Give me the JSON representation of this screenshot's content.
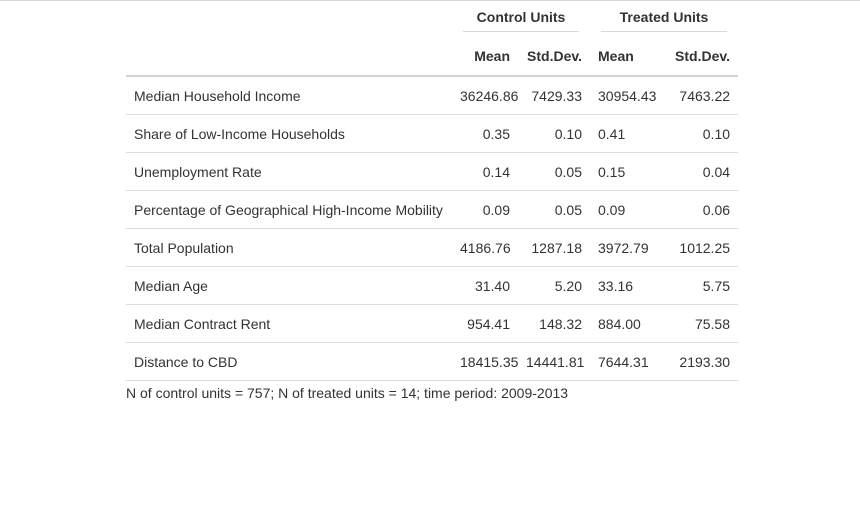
{
  "table": {
    "group_headers": [
      "Control Units",
      "Treated Units"
    ],
    "sub_headers": [
      "Mean",
      "Std.Dev.",
      "Mean",
      "Std.Dev."
    ],
    "rows": [
      {
        "label": "Median Household Income",
        "values": [
          "36246.86",
          "7429.33",
          "30954.43",
          "7463.22"
        ]
      },
      {
        "label": "Share of Low-Income Households",
        "values": [
          "0.35",
          "0.10",
          "0.41",
          "0.10"
        ]
      },
      {
        "label": "Unemployment Rate",
        "values": [
          "0.14",
          "0.05",
          "0.15",
          "0.04"
        ]
      },
      {
        "label": "Percentage of Geographical High-Income Mobility",
        "values": [
          "0.09",
          "0.05",
          "0.09",
          "0.06"
        ]
      },
      {
        "label": "Total Population",
        "values": [
          "4186.76",
          "1287.18",
          "3972.79",
          "1012.25"
        ]
      },
      {
        "label": "Median Age",
        "values": [
          "31.40",
          "5.20",
          "33.16",
          "5.75"
        ]
      },
      {
        "label": "Median Contract Rent",
        "values": [
          "954.41",
          "148.32",
          "884.00",
          "75.58"
        ]
      },
      {
        "label": "Distance to CBD",
        "values": [
          "18415.35",
          "14441.81",
          "7644.31",
          "2193.30"
        ]
      }
    ],
    "footnote": "N of control units = 757; N of treated units = 14; time period: 2009-2013"
  }
}
